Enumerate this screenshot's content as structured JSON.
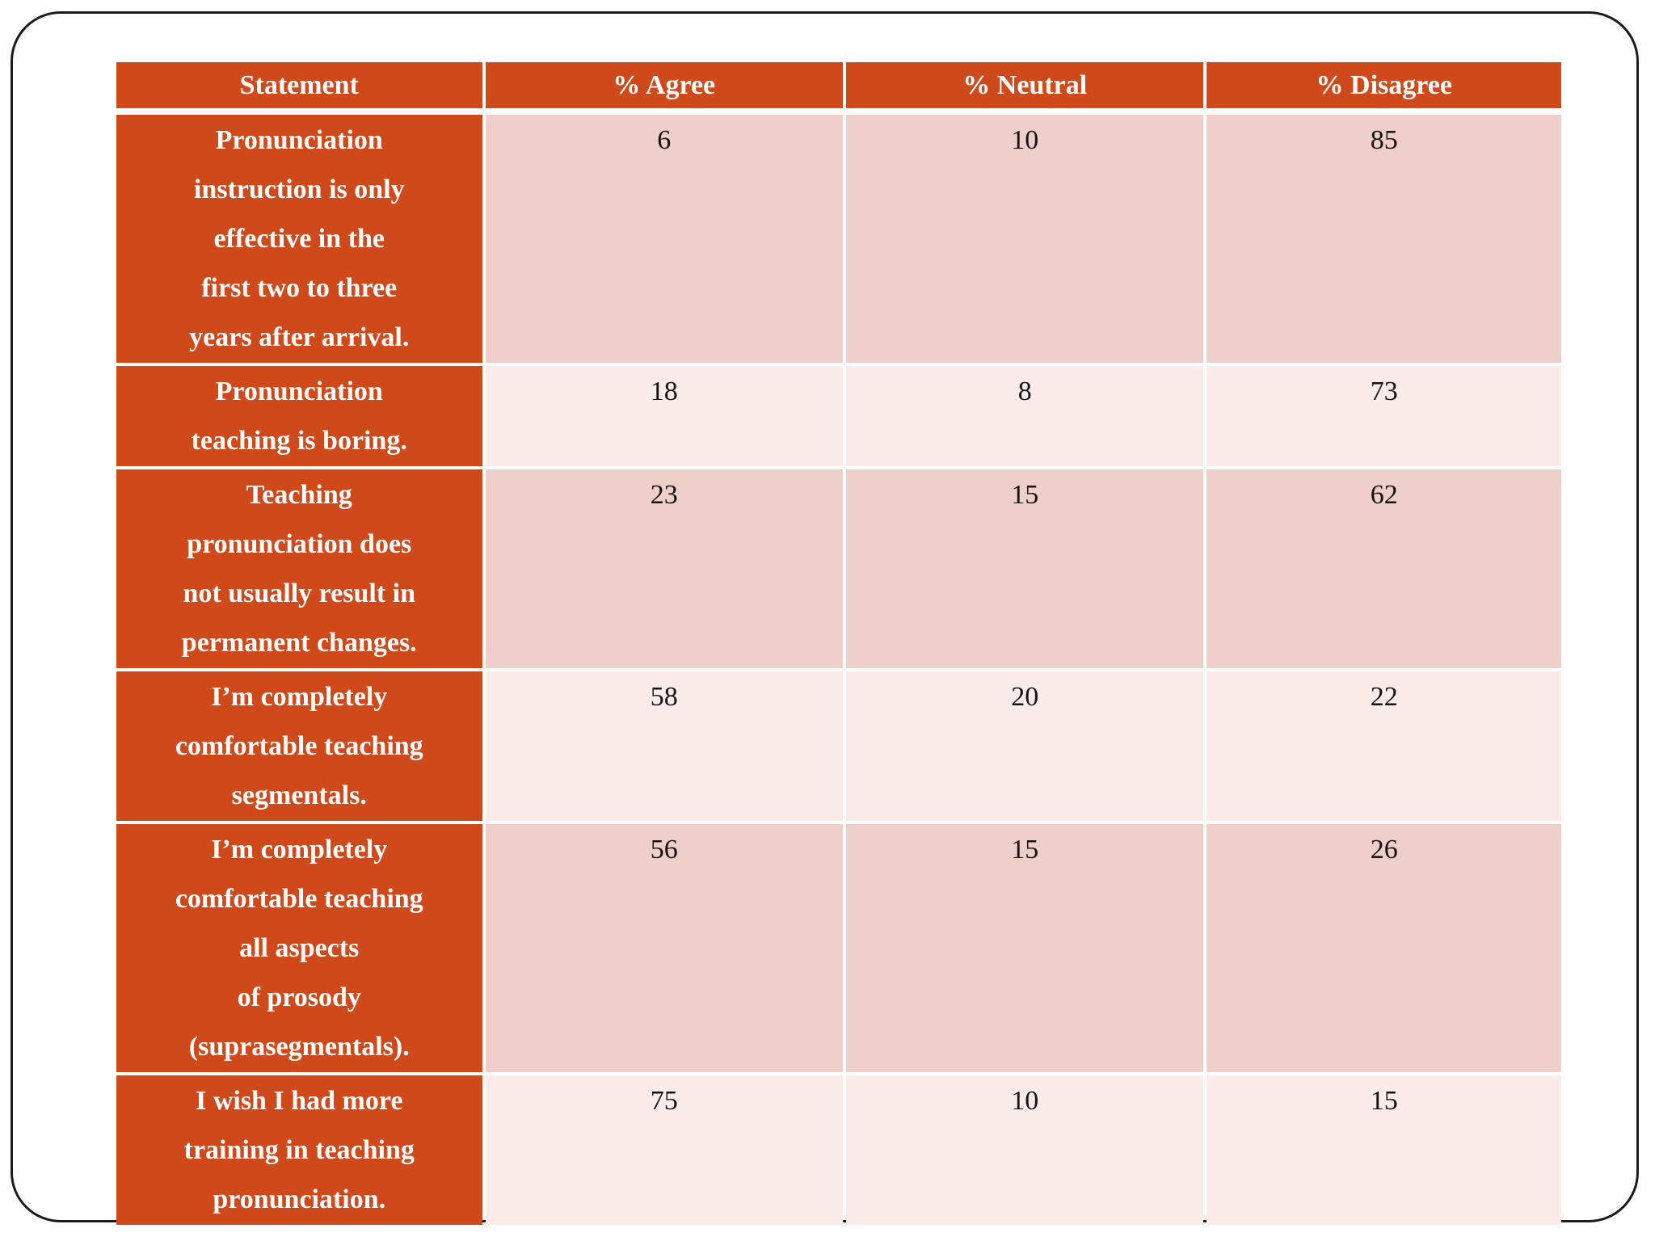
{
  "slide": {
    "background": "#ffffff",
    "border_color": "#1b1b1b"
  },
  "colors": {
    "header_bg": "#d0491b",
    "header_text": "#ffffff",
    "row_dark_bg": "#eecfc9",
    "row_light_bg": "#f9ece9",
    "value_text": "#141414",
    "border_color": "#1b1b1b"
  },
  "table": {
    "columns": [
      "Statement",
      "% Agree",
      "% Neutral",
      "% Disagree"
    ],
    "rows": [
      {
        "statement": "Pronunciation\ninstruction is only\neffective in the\nfirst two to three\nyears after arrival.",
        "agree": "6",
        "neutral": "10",
        "disagree": "85"
      },
      {
        "statement": "Pronunciation\nteaching is boring.",
        "agree": "18",
        "neutral": "8",
        "disagree": "73"
      },
      {
        "statement": "Teaching\npronunciation does\nnot usually result in\npermanent changes.",
        "agree": "23",
        "neutral": "15",
        "disagree": "62"
      },
      {
        "statement": "I’m completely\ncomfortable teaching\nsegmentals.",
        "agree": "58",
        "neutral": "20",
        "disagree": "22"
      },
      {
        "statement": "I’m completely\ncomfortable teaching\nall aspects\nof prosody\n(suprasegmentals).",
        "agree": "56",
        "neutral": "15",
        "disagree": "26"
      },
      {
        "statement": "I wish I had more\ntraining in teaching\npronunciation.",
        "agree": "75",
        "neutral": "10",
        "disagree": "15"
      }
    ]
  },
  "chart_data": {
    "type": "table",
    "columns": [
      "Statement",
      "% Agree",
      "% Neutral",
      "% Disagree"
    ],
    "rows": [
      [
        "Pronunciation instruction is only effective in the first two to three years after arrival.",
        6,
        10,
        85
      ],
      [
        "Pronunciation teaching is boring.",
        18,
        8,
        73
      ],
      [
        "Teaching pronunciation does not usually result in permanent changes.",
        23,
        15,
        62
      ],
      [
        "I’m completely comfortable teaching segmentals.",
        58,
        20,
        22
      ],
      [
        "I’m completely comfortable teaching all aspects of prosody (suprasegmentals).",
        56,
        15,
        26
      ],
      [
        "I wish I had more training in teaching pronunciation.",
        75,
        10,
        15
      ]
    ]
  }
}
